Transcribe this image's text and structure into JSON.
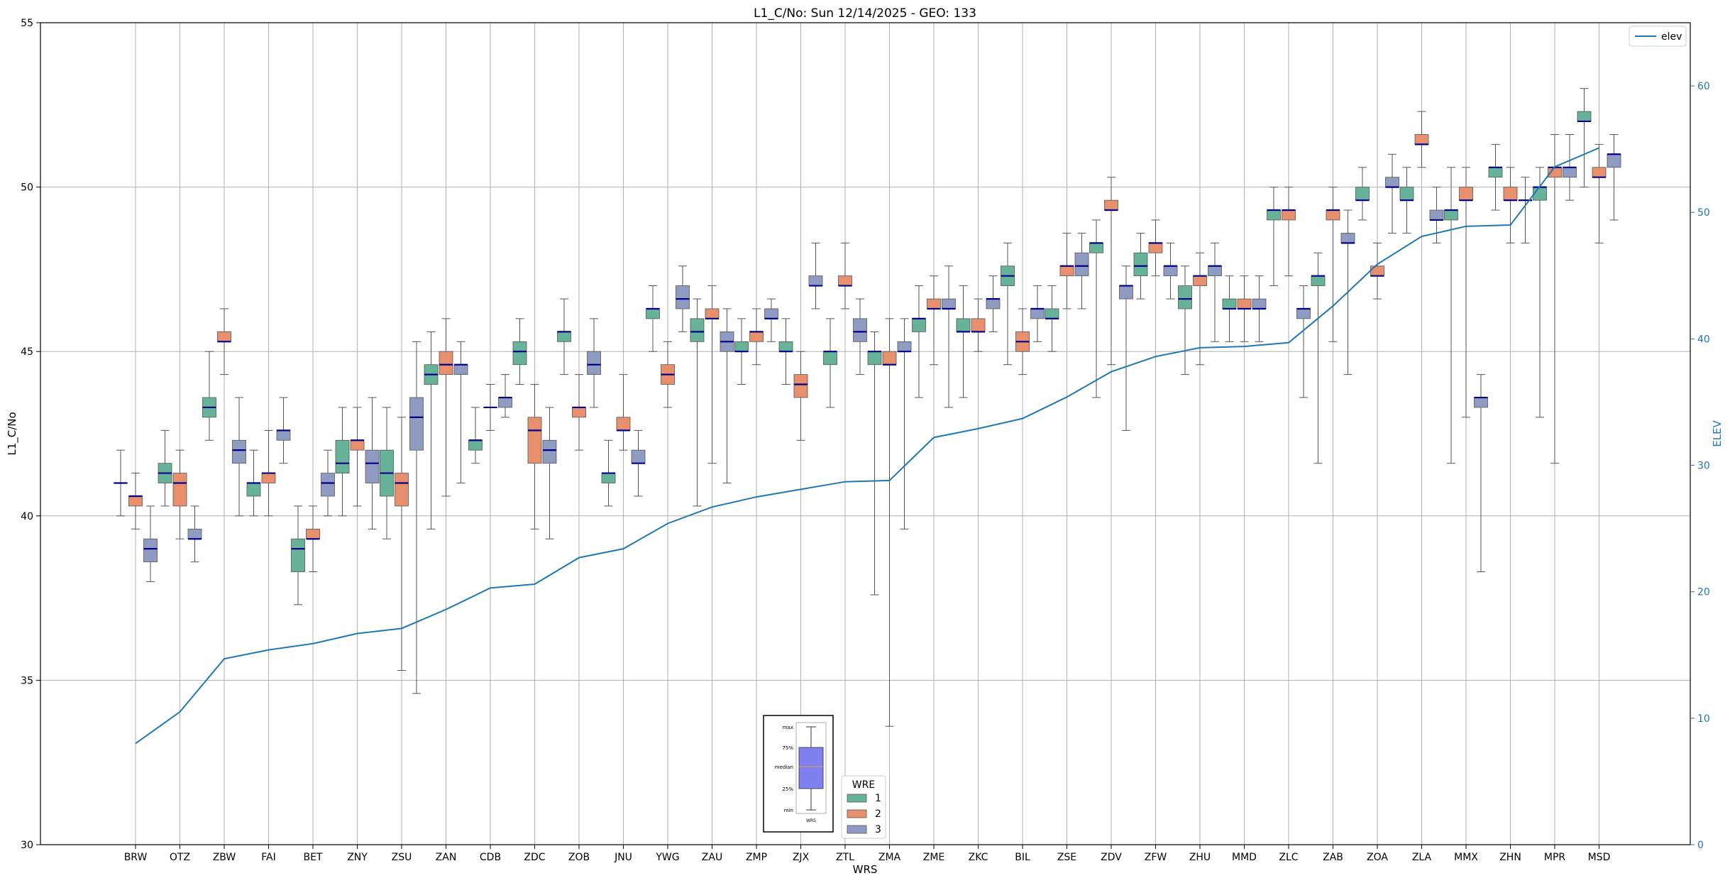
{
  "chart_data": {
    "type": "boxplot",
    "title": "L1_C/No: Sun 12/14/2025 - GEO: 133",
    "xlabel": "WRS",
    "ylabel": "L1_C/No",
    "y2label": "ELEV",
    "ylim": [
      30,
      55
    ],
    "y2lim": [
      0,
      65
    ],
    "yticks": [
      "30",
      "35",
      "40",
      "45",
      "50",
      "55"
    ],
    "y2ticks": [
      "0",
      "10",
      "20",
      "30",
      "40",
      "50",
      "60"
    ],
    "grid": true,
    "categories": [
      "BRW",
      "OTZ",
      "ZBW",
      "FAI",
      "BET",
      "ZNY",
      "ZSU",
      "ZAN",
      "CDB",
      "ZDC",
      "ZOB",
      "JNU",
      "YWG",
      "ZAU",
      "ZMP",
      "ZJX",
      "ZTL",
      "ZMA",
      "ZME",
      "ZKC",
      "BIL",
      "ZSE",
      "ZDV",
      "ZFW",
      "ZHU",
      "MMD",
      "ZLC",
      "ZAB",
      "ZOA",
      "ZLA",
      "MMX",
      "ZHN",
      "MPR",
      "MSD"
    ],
    "wre_legend": {
      "title": "WRE",
      "entries": [
        {
          "name": "1",
          "color": "#66b39a"
        },
        {
          "name": "2",
          "color": "#e8906d"
        },
        {
          "name": "3",
          "color": "#8f9bc0"
        }
      ]
    },
    "elev_line": {
      "name": "elev",
      "color": "#1f77b4",
      "values": [
        8,
        10.5,
        14.7,
        15.4,
        15.9,
        16.7,
        17.1,
        18.6,
        20.3,
        20.6,
        22.7,
        23.4,
        25.4,
        26.7,
        27.5,
        28.1,
        28.7,
        28.8,
        32.2,
        32.9,
        33.7,
        35.4,
        37.4,
        38.6,
        39.3,
        39.4,
        39.7,
        42.6,
        45.9,
        48.1,
        48.9,
        49.0,
        53.6,
        55.1
      ]
    },
    "key_inset": {
      "labels": [
        "max",
        "75%",
        "median",
        "25%",
        "min"
      ],
      "xlabel": "WRS",
      "box_color": "#8080f0"
    },
    "series": [
      {
        "name": "1",
        "boxes": [
          {
            "cat": "BRW",
            "min": 40,
            "q1": 41,
            "median": 41,
            "q3": 41,
            "max": 42
          },
          {
            "cat": "OTZ",
            "min": 40.3,
            "q1": 41,
            "median": 41.3,
            "q3": 41.6,
            "max": 42.6
          },
          {
            "cat": "ZBW",
            "min": 42.3,
            "q1": 43,
            "median": 43.3,
            "q3": 43.6,
            "max": 45
          },
          {
            "cat": "FAI",
            "min": 40,
            "q1": 40.6,
            "median": 41,
            "q3": 41,
            "max": 42
          },
          {
            "cat": "BET",
            "min": 37.3,
            "q1": 38.3,
            "median": 39,
            "q3": 39.3,
            "max": 40.3
          },
          {
            "cat": "ZNY",
            "min": 40,
            "q1": 41.3,
            "median": 41.6,
            "q3": 42.3,
            "max": 43.3
          },
          {
            "cat": "ZSU",
            "min": 39.3,
            "q1": 40.6,
            "median": 41.3,
            "q3": 42,
            "max": 43.3
          },
          {
            "cat": "ZAN",
            "min": 39.6,
            "q1": 44,
            "median": 44.3,
            "q3": 44.6,
            "max": 45.6
          },
          {
            "cat": "CDB",
            "min": 41.6,
            "q1": 42,
            "median": 42.3,
            "q3": 42.3,
            "max": 43.3
          },
          {
            "cat": "ZDC",
            "min": 44,
            "q1": 44.6,
            "median": 45,
            "q3": 45.3,
            "max": 46
          },
          {
            "cat": "ZOB",
            "min": 44.3,
            "q1": 45.3,
            "median": 45.6,
            "q3": 45.6,
            "max": 46.6
          },
          {
            "cat": "JNU",
            "min": 40.3,
            "q1": 41,
            "median": 41.3,
            "q3": 41.3,
            "max": 42.3
          },
          {
            "cat": "YWG",
            "min": 45,
            "q1": 46,
            "median": 46.3,
            "q3": 46.3,
            "max": 47
          },
          {
            "cat": "ZAU",
            "min": 40.3,
            "q1": 45.3,
            "median": 45.6,
            "q3": 46,
            "max": 46.6
          },
          {
            "cat": "ZMP",
            "min": 44,
            "q1": 45,
            "median": 45,
            "q3": 45.3,
            "max": 46
          },
          {
            "cat": "ZJX",
            "min": 44,
            "q1": 45,
            "median": 45,
            "q3": 45.3,
            "max": 46
          },
          {
            "cat": "ZTL",
            "min": 43.3,
            "q1": 44.6,
            "median": 45,
            "q3": 45,
            "max": 46
          },
          {
            "cat": "ZMA",
            "min": 37.6,
            "q1": 44.6,
            "median": 45,
            "q3": 45,
            "max": 45.6
          },
          {
            "cat": "ZME",
            "min": 43.6,
            "q1": 45.6,
            "median": 46,
            "q3": 46,
            "max": 47
          },
          {
            "cat": "ZKC",
            "min": 43.6,
            "q1": 45.6,
            "median": 45.6,
            "q3": 46,
            "max": 47
          },
          {
            "cat": "BIL",
            "min": 44.6,
            "q1": 47,
            "median": 47.3,
            "q3": 47.6,
            "max": 48.3
          },
          {
            "cat": "ZSE",
            "min": 45,
            "q1": 46,
            "median": 46,
            "q3": 46.3,
            "max": 47
          },
          {
            "cat": "ZDV",
            "min": 43.6,
            "q1": 48,
            "median": 48.3,
            "q3": 48.3,
            "max": 49
          },
          {
            "cat": "ZFW",
            "min": 46.6,
            "q1": 47.3,
            "median": 47.6,
            "q3": 48,
            "max": 48.6
          },
          {
            "cat": "ZHU",
            "min": 44.3,
            "q1": 46.3,
            "median": 46.6,
            "q3": 47,
            "max": 47.6
          },
          {
            "cat": "MMD",
            "min": 45.3,
            "q1": 46.3,
            "median": 46.3,
            "q3": 46.6,
            "max": 47.3
          },
          {
            "cat": "ZLC",
            "min": 47,
            "q1": 49,
            "median": 49.3,
            "q3": 49.3,
            "max": 50
          },
          {
            "cat": "ZAB",
            "min": 41.6,
            "q1": 47,
            "median": 47.3,
            "q3": 47.3,
            "max": 48
          },
          {
            "cat": "ZOA",
            "min": 49,
            "q1": 49.6,
            "median": 49.6,
            "q3": 50,
            "max": 50.6
          },
          {
            "cat": "ZLA",
            "min": 48.6,
            "q1": 49.6,
            "median": 49.6,
            "q3": 50,
            "max": 50.6
          },
          {
            "cat": "MMX",
            "min": 41.6,
            "q1": 49,
            "median": 49.3,
            "q3": 49.3,
            "max": 50.6
          },
          {
            "cat": "ZHN",
            "min": 49.3,
            "q1": 50.3,
            "median": 50.6,
            "q3": 50.6,
            "max": 51.3
          },
          {
            "cat": "MPR",
            "min": 43,
            "q1": 49.6,
            "median": 50,
            "q3": 50,
            "max": 50.6
          },
          {
            "cat": "MSD",
            "min": 50,
            "q1": 52,
            "median": 52,
            "q3": 52.3,
            "max": 53
          }
        ]
      },
      {
        "name": "2",
        "boxes": [
          {
            "cat": "BRW",
            "min": 39.6,
            "q1": 40.3,
            "median": 40.6,
            "q3": 40.6,
            "max": 41.3
          },
          {
            "cat": "OTZ",
            "min": 39.3,
            "q1": 40.3,
            "median": 41,
            "q3": 41.3,
            "max": 42
          },
          {
            "cat": "ZBW",
            "min": 44.3,
            "q1": 45.3,
            "median": 45.3,
            "q3": 45.6,
            "max": 46.3
          },
          {
            "cat": "FAI",
            "min": 40,
            "q1": 41,
            "median": 41.3,
            "q3": 41.3,
            "max": 42.6
          },
          {
            "cat": "BET",
            "min": 38.3,
            "q1": 39.3,
            "median": 39.3,
            "q3": 39.6,
            "max": 40.3
          },
          {
            "cat": "ZNY",
            "min": 40.3,
            "q1": 42,
            "median": 42.3,
            "q3": 42.3,
            "max": 43.3
          },
          {
            "cat": "ZSU",
            "min": 35.3,
            "q1": 40.3,
            "median": 41,
            "q3": 41.3,
            "max": 43
          },
          {
            "cat": "ZAN",
            "min": 40.6,
            "q1": 44.3,
            "median": 44.6,
            "q3": 45,
            "max": 46
          },
          {
            "cat": "CDB",
            "min": 42.6,
            "q1": 43.3,
            "median": 43.3,
            "q3": 43.3,
            "max": 44
          },
          {
            "cat": "ZDC",
            "min": 39.6,
            "q1": 41.6,
            "median": 42.6,
            "q3": 43,
            "max": 44
          },
          {
            "cat": "ZOB",
            "min": 42,
            "q1": 43,
            "median": 43.3,
            "q3": 43.3,
            "max": 44.3
          },
          {
            "cat": "JNU",
            "min": 42,
            "q1": 42.6,
            "median": 42.6,
            "q3": 43,
            "max": 44.3
          },
          {
            "cat": "YWG",
            "min": 43.3,
            "q1": 44,
            "median": 44.3,
            "q3": 44.6,
            "max": 45.3
          },
          {
            "cat": "ZAU",
            "min": 41.6,
            "q1": 46,
            "median": 46,
            "q3": 46.3,
            "max": 47
          },
          {
            "cat": "ZMP",
            "min": 44.6,
            "q1": 45.3,
            "median": 45.6,
            "q3": 45.6,
            "max": 46.3
          },
          {
            "cat": "ZJX",
            "min": 42.3,
            "q1": 43.6,
            "median": 44,
            "q3": 44.3,
            "max": 45
          },
          {
            "cat": "ZTL",
            "min": 46.3,
            "q1": 47,
            "median": 47,
            "q3": 47.3,
            "max": 48.3
          },
          {
            "cat": "ZMA",
            "min": 33.6,
            "q1": 44.6,
            "median": 44.6,
            "q3": 45,
            "max": 46
          },
          {
            "cat": "ZME",
            "min": 44.6,
            "q1": 46.3,
            "median": 46.3,
            "q3": 46.6,
            "max": 47.3
          },
          {
            "cat": "ZKC",
            "min": 45,
            "q1": 45.6,
            "median": 45.6,
            "q3": 46,
            "max": 46.6
          },
          {
            "cat": "BIL",
            "min": 44.3,
            "q1": 45,
            "median": 45.3,
            "q3": 45.6,
            "max": 46.3
          },
          {
            "cat": "ZSE",
            "min": 46.3,
            "q1": 47.3,
            "median": 47.6,
            "q3": 47.6,
            "max": 48.6
          },
          {
            "cat": "ZDV",
            "min": 44.6,
            "q1": 49.3,
            "median": 49.3,
            "q3": 49.6,
            "max": 50.3
          },
          {
            "cat": "ZFW",
            "min": 47.3,
            "q1": 48,
            "median": 48.3,
            "q3": 48.3,
            "max": 49
          },
          {
            "cat": "ZHU",
            "min": 44.6,
            "q1": 47,
            "median": 47.3,
            "q3": 47.3,
            "max": 48
          },
          {
            "cat": "MMD",
            "min": 45.3,
            "q1": 46.3,
            "median": 46.3,
            "q3": 46.6,
            "max": 47.3
          },
          {
            "cat": "ZLC",
            "min": 47.3,
            "q1": 49,
            "median": 49.3,
            "q3": 49.3,
            "max": 50
          },
          {
            "cat": "ZAB",
            "min": 45.3,
            "q1": 49,
            "median": 49.3,
            "q3": 49.3,
            "max": 50
          },
          {
            "cat": "ZOA",
            "min": 46.6,
            "q1": 47.3,
            "median": 47.3,
            "q3": 47.6,
            "max": 48.3
          },
          {
            "cat": "ZLA",
            "min": 50.6,
            "q1": 51.3,
            "median": 51.3,
            "q3": 51.6,
            "max": 52.3
          },
          {
            "cat": "MMX",
            "min": 43,
            "q1": 49.6,
            "median": 49.6,
            "q3": 50,
            "max": 50.6
          },
          {
            "cat": "ZHN",
            "min": 48.3,
            "q1": 49.6,
            "median": 49.6,
            "q3": 50,
            "max": 50.6
          },
          {
            "cat": "MPR",
            "min": 41.6,
            "q1": 50.3,
            "median": 50.6,
            "q3": 50.6,
            "max": 51.6
          },
          {
            "cat": "MSD",
            "min": 48.3,
            "q1": 50.3,
            "median": 50.3,
            "q3": 50.6,
            "max": 51.3
          }
        ]
      },
      {
        "name": "3",
        "boxes": [
          {
            "cat": "BRW",
            "min": 38,
            "q1": 38.6,
            "median": 39,
            "q3": 39.3,
            "max": 40.3
          },
          {
            "cat": "OTZ",
            "min": 38.6,
            "q1": 39.3,
            "median": 39.3,
            "q3": 39.6,
            "max": 40.3
          },
          {
            "cat": "ZBW",
            "min": 40,
            "q1": 41.6,
            "median": 42,
            "q3": 42.3,
            "max": 43.6
          },
          {
            "cat": "FAI",
            "min": 41.6,
            "q1": 42.3,
            "median": 42.6,
            "q3": 42.6,
            "max": 43.6
          },
          {
            "cat": "BET",
            "min": 40,
            "q1": 40.6,
            "median": 41,
            "q3": 41.3,
            "max": 42
          },
          {
            "cat": "ZNY",
            "min": 39.6,
            "q1": 41,
            "median": 41.6,
            "q3": 42,
            "max": 43.6
          },
          {
            "cat": "ZSU",
            "min": 34.6,
            "q1": 42,
            "median": 43,
            "q3": 43.6,
            "max": 45.3
          },
          {
            "cat": "ZAN",
            "min": 41,
            "q1": 44.3,
            "median": 44.6,
            "q3": 44.6,
            "max": 45.3
          },
          {
            "cat": "CDB",
            "min": 43,
            "q1": 43.3,
            "median": 43.6,
            "q3": 43.6,
            "max": 44.3
          },
          {
            "cat": "ZDC",
            "min": 39.3,
            "q1": 41.6,
            "median": 42,
            "q3": 42.3,
            "max": 43.3
          },
          {
            "cat": "ZOB",
            "min": 43.3,
            "q1": 44.3,
            "median": 44.6,
            "q3": 45,
            "max": 46
          },
          {
            "cat": "JNU",
            "min": 40.6,
            "q1": 41.6,
            "median": 41.6,
            "q3": 42,
            "max": 42.6
          },
          {
            "cat": "YWG",
            "min": 45.6,
            "q1": 46.3,
            "median": 46.6,
            "q3": 47,
            "max": 47.6
          },
          {
            "cat": "ZAU",
            "min": 41,
            "q1": 45,
            "median": 45.3,
            "q3": 45.6,
            "max": 46.3
          },
          {
            "cat": "ZMP",
            "min": 45.3,
            "q1": 46,
            "median": 46,
            "q3": 46.3,
            "max": 46.6
          },
          {
            "cat": "ZJX",
            "min": 46.3,
            "q1": 47,
            "median": 47,
            "q3": 47.3,
            "max": 48.3
          },
          {
            "cat": "ZTL",
            "min": 44.3,
            "q1": 45.3,
            "median": 45.6,
            "q3": 46,
            "max": 46.6
          },
          {
            "cat": "ZMA",
            "min": 39.6,
            "q1": 45,
            "median": 45,
            "q3": 45.3,
            "max": 46
          },
          {
            "cat": "ZME",
            "min": 43.3,
            "q1": 46.3,
            "median": 46.3,
            "q3": 46.6,
            "max": 47.6
          },
          {
            "cat": "ZKC",
            "min": 45.6,
            "q1": 46.3,
            "median": 46.6,
            "q3": 46.6,
            "max": 47.3
          },
          {
            "cat": "BIL",
            "min": 45.3,
            "q1": 46,
            "median": 46.3,
            "q3": 46.3,
            "max": 47
          },
          {
            "cat": "ZSE",
            "min": 46.3,
            "q1": 47.3,
            "median": 47.6,
            "q3": 48,
            "max": 48.6
          },
          {
            "cat": "ZDV",
            "min": 42.6,
            "q1": 46.6,
            "median": 47,
            "q3": 47,
            "max": 47.6
          },
          {
            "cat": "ZFW",
            "min": 46.6,
            "q1": 47.3,
            "median": 47.6,
            "q3": 47.6,
            "max": 48.3
          },
          {
            "cat": "ZHU",
            "min": 45.3,
            "q1": 47.3,
            "median": 47.6,
            "q3": 47.6,
            "max": 48.3
          },
          {
            "cat": "MMD",
            "min": 45.3,
            "q1": 46.3,
            "median": 46.3,
            "q3": 46.6,
            "max": 47.3
          },
          {
            "cat": "ZLC",
            "min": 43.6,
            "q1": 46,
            "median": 46.3,
            "q3": 46.3,
            "max": 47
          },
          {
            "cat": "ZAB",
            "min": 44.3,
            "q1": 48.3,
            "median": 48.3,
            "q3": 48.6,
            "max": 49.3
          },
          {
            "cat": "ZOA",
            "min": 48.6,
            "q1": 50,
            "median": 50,
            "q3": 50.3,
            "max": 51
          },
          {
            "cat": "ZLA",
            "min": 48.3,
            "q1": 49,
            "median": 49,
            "q3": 49.3,
            "max": 50
          },
          {
            "cat": "MMX",
            "min": 38.3,
            "q1": 43.3,
            "median": 43.6,
            "q3": 43.6,
            "max": 44.3
          },
          {
            "cat": "ZHN",
            "min": 48.3,
            "q1": 49.6,
            "median": 49.6,
            "q3": 49.6,
            "max": 50.3
          },
          {
            "cat": "MPR",
            "min": 49.6,
            "q1": 50.3,
            "median": 50.6,
            "q3": 50.6,
            "max": 51.6
          },
          {
            "cat": "MSD",
            "min": 49,
            "q1": 50.6,
            "median": 51,
            "q3": 51,
            "max": 51.6
          }
        ]
      }
    ]
  }
}
